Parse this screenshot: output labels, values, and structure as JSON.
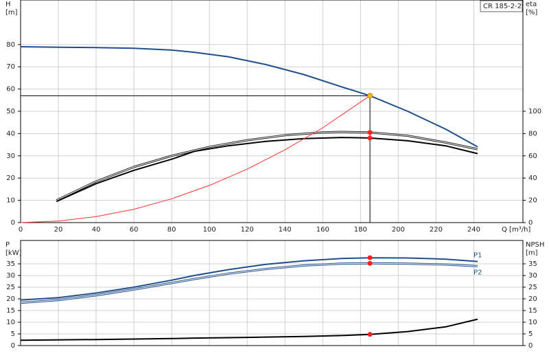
{
  "chart_data": [
    {
      "type": "line",
      "title": "CR 185-2-2",
      "xlabel": "Q [m³/h]",
      "ylabel": "H",
      "yunit": "[m]",
      "y2label": "eta",
      "y2unit": "[%]",
      "xlim": [
        0,
        266
      ],
      "xticks": [
        0,
        20,
        40,
        60,
        80,
        100,
        120,
        140,
        160,
        180,
        200,
        220,
        240
      ],
      "xtick_labels": true,
      "ylim": [
        0,
        100
      ],
      "yticks": [
        0,
        10,
        20,
        30,
        40,
        50,
        60,
        70,
        80
      ],
      "y2lim": [
        0,
        200
      ],
      "y2ticks": [
        0,
        20,
        40,
        60,
        80,
        100
      ],
      "grid": true,
      "series": [
        {
          "color": "#1f4e8c",
          "style": "thick",
          "x": [
            0,
            20,
            40,
            60,
            80,
            92,
            110,
            130,
            150,
            170,
            185,
            205,
            225,
            242
          ],
          "values": [
            79,
            78.8,
            78.6,
            78.3,
            77.5,
            76.5,
            74.5,
            71,
            66.5,
            61,
            57,
            50,
            42,
            34
          ]
        },
        {
          "color": "#222222",
          "style": "double",
          "axis": "y2",
          "x": [
            19,
            40,
            60,
            80,
            100,
            120,
            140,
            160,
            170,
            185,
            205,
            225,
            242
          ],
          "values": [
            20,
            37,
            50,
            60,
            68,
            74,
            78.5,
            81,
            81.5,
            81,
            78,
            72,
            66
          ]
        },
        {
          "color": "#000000",
          "style": "thick",
          "axis": "y2",
          "x": [
            19,
            40,
            60,
            80,
            92,
            110,
            130,
            150,
            170,
            185,
            205,
            225,
            242
          ],
          "values": [
            19,
            35,
            47,
            57,
            64,
            69,
            73,
            75.5,
            76.5,
            76,
            73.5,
            69,
            62
          ]
        },
        {
          "color": "#ff3030",
          "style": "thin",
          "x": [
            0,
            20,
            40,
            60,
            80,
            100,
            120,
            140,
            160,
            185
          ],
          "values": [
            0,
            0.7,
            2.7,
            6,
            10.7,
            16.7,
            24,
            32.7,
            42.6,
            57
          ]
        }
      ],
      "markers": [
        {
          "x": 185,
          "y": 57,
          "color": "#f5c000",
          "crosshair": true
        },
        {
          "x": 185,
          "y": 81,
          "axis": "y2",
          "color": "#ff2020",
          "crosshair": false
        },
        {
          "x": 185,
          "y": 76,
          "axis": "y2",
          "color": "#ff2020",
          "crosshair": false
        }
      ]
    },
    {
      "type": "line",
      "ylabel": "P",
      "yunit": "[kW]",
      "y2label": "NPSH",
      "y2unit": "[m]",
      "xlim": [
        0,
        266
      ],
      "xticks": [
        0,
        20,
        40,
        60,
        80,
        100,
        120,
        140,
        160,
        180,
        200,
        220,
        240
      ],
      "xtick_labels": false,
      "ylim": [
        0,
        45
      ],
      "yticks": [
        0,
        5,
        10,
        15,
        20,
        25,
        30,
        35
      ],
      "y2lim": [
        0,
        45
      ],
      "y2ticks": [
        0,
        5,
        10,
        15,
        20,
        25,
        30,
        35
      ],
      "grid": true,
      "series": [
        {
          "name": "P1",
          "color": "#1f4e8c",
          "style": "thick",
          "x": [
            0,
            20,
            40,
            60,
            80,
            92,
            110,
            130,
            150,
            170,
            185,
            205,
            225,
            242
          ],
          "values": [
            19.5,
            20.5,
            22.5,
            25,
            28,
            30,
            32.5,
            34.8,
            36.3,
            37.3,
            37.6,
            37.5,
            37,
            36
          ]
        },
        {
          "name": "P2",
          "color": "#1f4e8c",
          "style": "double",
          "x": [
            0,
            20,
            40,
            60,
            80,
            92,
            110,
            130,
            150,
            170,
            185,
            205,
            225,
            242
          ],
          "values": [
            18.3,
            19.5,
            21.5,
            24,
            26.8,
            28.5,
            30.8,
            32.8,
            34.3,
            35.1,
            35.2,
            35.1,
            34.7,
            34
          ]
        },
        {
          "color": "#000000",
          "style": "thick",
          "axis": "y2",
          "x": [
            0,
            40,
            80,
            92,
            120,
            150,
            170,
            185,
            205,
            225,
            242
          ],
          "values": [
            2.3,
            2.6,
            3,
            3.2,
            3.5,
            3.9,
            4.3,
            4.8,
            6,
            8,
            11.3
          ]
        }
      ],
      "markers": [
        {
          "x": 185,
          "y": 37.6,
          "color": "#ff2020",
          "crosshair": false
        },
        {
          "x": 185,
          "y": 35.2,
          "color": "#ff2020",
          "crosshair": false
        },
        {
          "x": 185,
          "y": 4.8,
          "axis": "y2",
          "color": "#ff2020",
          "crosshair": false
        }
      ]
    }
  ]
}
